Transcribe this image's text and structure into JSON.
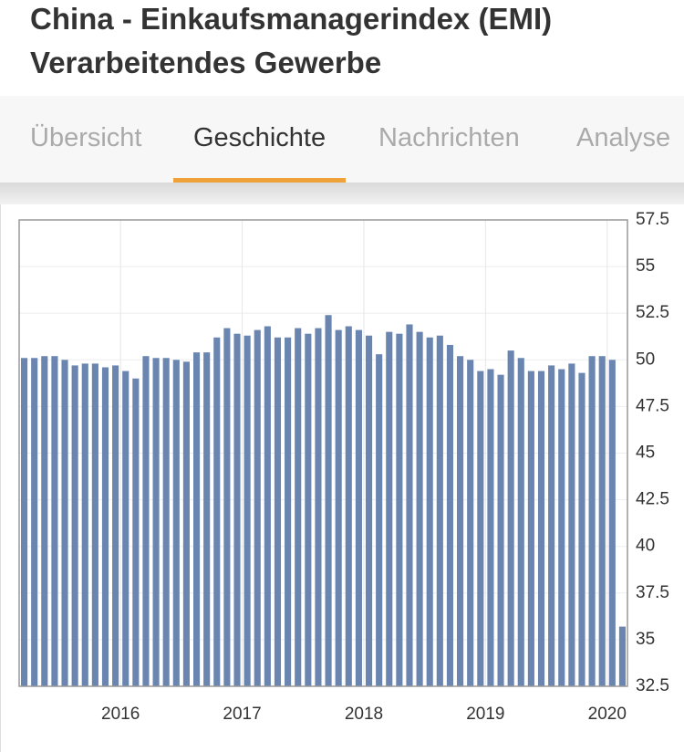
{
  "header": {
    "title_lines": [
      "China - Einkaufsmanagerindex (EMI)",
      "Verarbeitendes Gewerbe"
    ]
  },
  "tabs": {
    "items": [
      "Übersicht",
      "Geschichte",
      "Nachrichten",
      "Analyse"
    ],
    "active": 1
  },
  "chart_data": {
    "type": "bar",
    "color": "#6a86b0",
    "grid": true,
    "y_axis_side": "right",
    "categories": [
      null,
      null,
      null,
      null,
      null,
      null,
      null,
      null,
      null,
      null,
      "2016",
      null,
      null,
      null,
      null,
      null,
      null,
      null,
      null,
      null,
      null,
      null,
      "2017",
      null,
      null,
      null,
      null,
      null,
      null,
      null,
      null,
      null,
      null,
      null,
      "2018",
      null,
      null,
      null,
      null,
      null,
      null,
      null,
      null,
      null,
      null,
      null,
      "2019",
      null,
      null,
      null,
      null,
      null,
      null,
      null,
      null,
      null,
      null,
      null,
      "2020",
      null
    ],
    "values": [
      50.1,
      50.1,
      50.2,
      50.2,
      50.0,
      49.7,
      49.8,
      49.8,
      49.6,
      49.7,
      49.4,
      49.0,
      50.2,
      50.1,
      50.1,
      50.0,
      49.9,
      50.4,
      50.4,
      51.2,
      51.7,
      51.4,
      51.3,
      51.6,
      51.8,
      51.2,
      51.2,
      51.7,
      51.4,
      51.7,
      52.4,
      51.6,
      51.8,
      51.6,
      51.3,
      50.3,
      51.5,
      51.4,
      51.9,
      51.5,
      51.2,
      51.3,
      50.8,
      50.2,
      50.0,
      49.4,
      49.5,
      49.2,
      50.5,
      50.1,
      49.4,
      49.4,
      49.7,
      49.5,
      49.8,
      49.3,
      50.2,
      50.2,
      50.0,
      35.7
    ],
    "ylim": [
      32.5,
      57.5
    ],
    "yticks": [
      32.5,
      35,
      37.5,
      40,
      42.5,
      45,
      47.5,
      50,
      52.5,
      55,
      57.5
    ]
  }
}
